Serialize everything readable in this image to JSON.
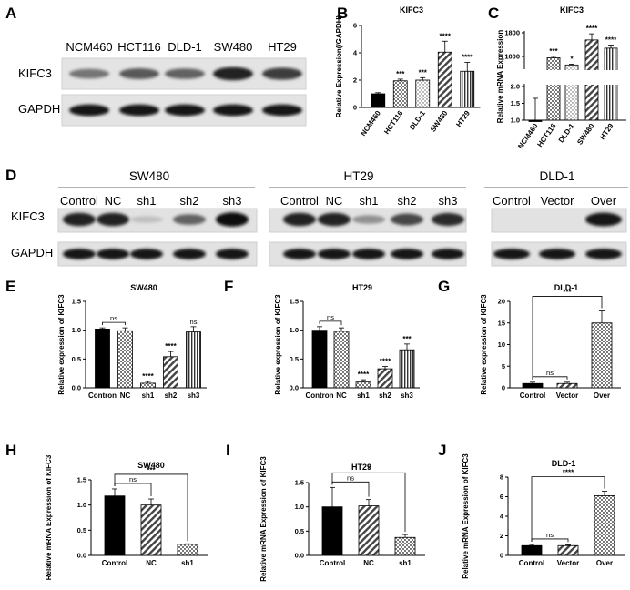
{
  "panel_labels": [
    "A",
    "B",
    "C",
    "D",
    "E",
    "F",
    "G",
    "H",
    "I",
    "J"
  ],
  "colors": {
    "black": "#000000",
    "checker": "#808080",
    "stripe": "#555555",
    "text": "#000000"
  },
  "blots": {
    "A": {
      "lanes": [
        "NCM460",
        "HCT116",
        "DLD-1",
        "SW480",
        "HT29"
      ],
      "rows": [
        "KIFC3",
        "GAPDH"
      ],
      "intensity": {
        "KIFC3": [
          0.45,
          0.6,
          0.55,
          0.9,
          0.75
        ],
        "GAPDH": [
          0.95,
          0.95,
          0.95,
          0.95,
          0.95
        ]
      }
    },
    "D": {
      "row_labels": [
        "KIFC3",
        "GAPDH"
      ],
      "groups": [
        {
          "title": "SW480",
          "lanes": [
            "Control",
            "NC",
            "sh1",
            "sh2",
            "sh3"
          ],
          "intensity": {
            "KIFC3": [
              0.9,
              0.9,
              0.05,
              0.55,
              1.0
            ],
            "GAPDH": [
              0.95,
              0.95,
              0.95,
              0.95,
              0.95
            ]
          }
        },
        {
          "title": "HT29",
          "lanes": [
            "Control",
            "NC",
            "sh1",
            "sh2",
            "sh3"
          ],
          "intensity": {
            "KIFC3": [
              0.9,
              0.9,
              0.3,
              0.7,
              0.85
            ],
            "GAPDH": [
              0.95,
              0.95,
              0.95,
              0.95,
              0.95
            ]
          }
        },
        {
          "title": "DLD-1",
          "lanes": [
            "Control",
            "Vector",
            "Over"
          ],
          "intensity": {
            "KIFC3": [
              0.0,
              0.0,
              0.95
            ],
            "GAPDH": [
              0.95,
              0.95,
              0.95
            ]
          }
        }
      ]
    }
  },
  "chart_data": [
    {
      "panel": "B",
      "type": "bar",
      "title": "KIFC3",
      "ylabel": "Relative Expression(/GAPDH)",
      "categories": [
        "NCM460",
        "HCT116",
        "DLD-1",
        "SW480",
        "HT29"
      ],
      "values": [
        1.0,
        1.95,
        2.0,
        4.05,
        2.65
      ],
      "errors": [
        0.08,
        0.12,
        0.18,
        0.8,
        0.65
      ],
      "patterns": [
        "solid",
        "checker",
        "dots",
        "stripe",
        "vstripe"
      ],
      "ylim": [
        0,
        6
      ],
      "yticks": [
        0,
        2,
        4,
        6
      ],
      "sig": [
        "",
        "***",
        "***",
        "****",
        "****"
      ]
    },
    {
      "panel": "C",
      "type": "bar",
      "title": "KIFC3",
      "ylabel": "Relative mRNA Expression",
      "categories": [
        "NCM460",
        "HCT116",
        "DLD-1",
        "SW480",
        "HT29"
      ],
      "values": [
        1.0,
        580,
        230,
        1450,
        1050
      ],
      "errors": [
        0.65,
        70,
        40,
        300,
        150
      ],
      "patterns": [
        "solid",
        "checker",
        "dots",
        "stripe",
        "vstripe"
      ],
      "ytick_labels": [
        "1.0",
        "1.5",
        "2.0",
        "1000",
        "1800"
      ],
      "axis_break": true,
      "sig": [
        "",
        "***",
        "*",
        "****",
        "****"
      ]
    },
    {
      "panel": "E",
      "type": "bar",
      "title": "SW480",
      "ylabel": "Relative expression of KIFC3",
      "categories": [
        "Contron",
        "NC",
        "sh1",
        "sh2",
        "sh3"
      ],
      "values": [
        1.02,
        0.99,
        0.08,
        0.54,
        0.97
      ],
      "errors": [
        0.02,
        0.05,
        0.03,
        0.09,
        0.09
      ],
      "patterns": [
        "solid",
        "checker",
        "checker",
        "stripe",
        "vstripe"
      ],
      "ylim": [
        0,
        1.5
      ],
      "yticks": [
        "0.0",
        "0.5",
        "1.0",
        "1.5"
      ],
      "sig": [
        "",
        "",
        "****",
        "****",
        "ns"
      ],
      "bracket": {
        "from": 0,
        "to": 1,
        "label": "ns"
      }
    },
    {
      "panel": "F",
      "type": "bar",
      "title": "HT29",
      "ylabel": "Relative expression of KIFC3",
      "categories": [
        "Contron",
        "NC",
        "sh1",
        "sh2",
        "sh3"
      ],
      "values": [
        1.0,
        0.98,
        0.1,
        0.33,
        0.66
      ],
      "errors": [
        0.06,
        0.06,
        0.04,
        0.04,
        0.1
      ],
      "patterns": [
        "solid",
        "checker",
        "checker",
        "stripe",
        "vstripe"
      ],
      "ylim": [
        0,
        1.5
      ],
      "yticks": [
        "0.0",
        "0.5",
        "1.0",
        "1.5"
      ],
      "sig": [
        "",
        "",
        "****",
        "****",
        "***"
      ],
      "bracket": {
        "from": 0,
        "to": 1,
        "label": "ns"
      }
    },
    {
      "panel": "G",
      "type": "bar",
      "title": "DLD-1",
      "ylabel": "Relative expression of KIFC3",
      "categories": [
        "Control",
        "Vector",
        "Over"
      ],
      "values": [
        1.0,
        1.0,
        15.0
      ],
      "errors": [
        0.3,
        0.3,
        2.8
      ],
      "patterns": [
        "solid",
        "stripe",
        "checker"
      ],
      "ylim": [
        0,
        20
      ],
      "yticks": [
        "0",
        "5",
        "10",
        "15",
        "20"
      ],
      "brackets": [
        {
          "from": 0,
          "to": 1,
          "label": "ns"
        },
        {
          "from": 0,
          "to": 2,
          "label": "***"
        }
      ]
    },
    {
      "panel": "H",
      "type": "bar",
      "title": "SW480",
      "ylabel": "Relative mRNA Expression of KIFC3",
      "categories": [
        "Control",
        "NC",
        "sh1"
      ],
      "values": [
        1.18,
        1.0,
        0.22
      ],
      "errors": [
        0.14,
        0.12,
        0.01
      ],
      "patterns": [
        "solid",
        "stripe",
        "checker"
      ],
      "ylim": [
        0,
        1.5
      ],
      "yticks": [
        "0.0",
        "0.5",
        "1.0",
        "1.5"
      ],
      "brackets": [
        {
          "from": 0,
          "to": 1,
          "label": "ns"
        },
        {
          "from": 0,
          "to": 2,
          "label": "***"
        }
      ]
    },
    {
      "panel": "I",
      "type": "bar",
      "title": "HT29",
      "ylabel": "Relative mRNA Expression of KIFC3",
      "categories": [
        "Control",
        "NC",
        "sh1"
      ],
      "values": [
        1.0,
        1.02,
        0.37
      ],
      "errors": [
        0.4,
        0.13,
        0.06
      ],
      "patterns": [
        "solid",
        "stripe",
        "checker"
      ],
      "ylim": [
        0,
        1.5
      ],
      "yticks": [
        "0.0",
        "0.5",
        "1.0",
        "1.5"
      ],
      "brackets": [
        {
          "from": 0,
          "to": 1,
          "label": "ns"
        },
        {
          "from": 0,
          "to": 2,
          "label": "*"
        }
      ]
    },
    {
      "panel": "J",
      "type": "bar",
      "title": "DLD-1",
      "ylabel": "Relative mRNA Expression of KIFC3",
      "categories": [
        "Control",
        "Vector",
        "Over"
      ],
      "values": [
        1.0,
        1.0,
        6.1
      ],
      "errors": [
        0.12,
        0.08,
        0.45
      ],
      "patterns": [
        "solid",
        "stripe",
        "checker"
      ],
      "ylim": [
        0,
        8
      ],
      "yticks": [
        "0",
        "2",
        "4",
        "6",
        "8"
      ],
      "brackets": [
        {
          "from": 0,
          "to": 1,
          "label": "ns"
        },
        {
          "from": 0,
          "to": 2,
          "label": "****"
        }
      ]
    }
  ]
}
